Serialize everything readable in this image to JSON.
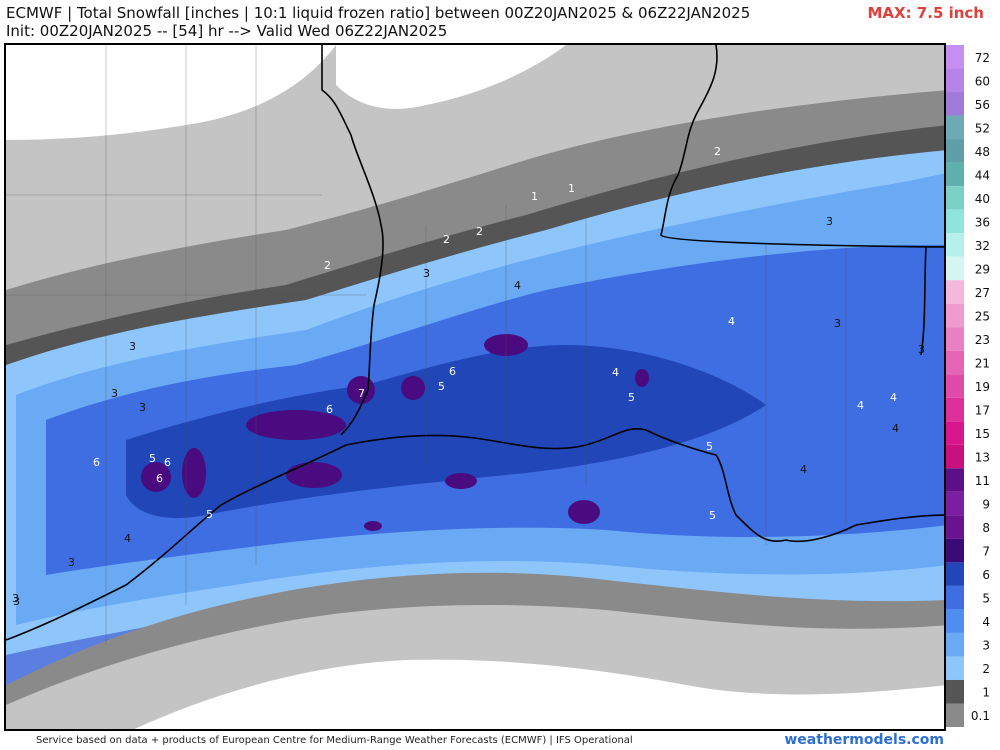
{
  "header": {
    "title_line1": "ECMWF | Total Snowfall [inches | 10:1 liquid frozen ratio] between 00Z20JAN2025 & 06Z22JAN2025",
    "title_line2": "Init: 00Z20JAN2025 -- [54] hr --> Valid Wed 06Z22JAN2025",
    "max_label": "MAX: 7.5 inch"
  },
  "legend": {
    "levels": [
      "72",
      "60",
      "56",
      "52",
      "48",
      "44",
      "40",
      "36",
      "32",
      "29",
      "27",
      "25",
      "23",
      "21",
      "19",
      "17",
      "15",
      "13",
      "11",
      "9",
      "8",
      "7",
      "6",
      "5",
      "4",
      "3",
      "2",
      "1",
      "0.1"
    ],
    "colors": [
      "#c58ef0",
      "#b684e8",
      "#a07ad8",
      "#6fa9b4",
      "#5e9fa8",
      "#5fb1ad",
      "#7bd1c6",
      "#8fe4dc",
      "#b5f0ec",
      "#d3f6f2",
      "#f4b8dd",
      "#ee9bd0",
      "#e880c3",
      "#e465b6",
      "#e04aa8",
      "#dc2f9a",
      "#d8158c",
      "#c8107e",
      "#5c0f86",
      "#7a1fa2",
      "#68138f",
      "#3a0a78",
      "#2146b7",
      "#3f6ee2",
      "#4f8df0",
      "#6aa9f4",
      "#8ec6fb",
      "#555555",
      "#8a8a8a",
      "#c9c9c9"
    ]
  },
  "map": {
    "contour_labels": [
      {
        "text": "2",
        "color": "#ffffff"
      },
      {
        "text": "1",
        "color": "#ffffff"
      },
      {
        "text": "1",
        "color": "#ffffff"
      },
      {
        "text": "2",
        "color": "#ffffff"
      },
      {
        "text": "2",
        "color": "#ffffff"
      },
      {
        "text": "2",
        "color": "#ffffff"
      },
      {
        "text": "3",
        "color": "#111111"
      },
      {
        "text": "3",
        "color": "#111111"
      },
      {
        "text": "4",
        "color": "#111111"
      },
      {
        "text": "4",
        "color": "#ffffff"
      },
      {
        "text": "3",
        "color": "#111111"
      },
      {
        "text": "3",
        "color": "#111111"
      },
      {
        "text": "3",
        "color": "#111111"
      },
      {
        "text": "3",
        "color": "#111111"
      },
      {
        "text": "3",
        "color": "#111111"
      },
      {
        "text": "6",
        "color": "#ffffff"
      },
      {
        "text": "5",
        "color": "#ffffff"
      },
      {
        "text": "7",
        "color": "#ffffff"
      },
      {
        "text": "6",
        "color": "#ffffff"
      },
      {
        "text": "4",
        "color": "#ffffff"
      },
      {
        "text": "5",
        "color": "#ffffff"
      },
      {
        "text": "4",
        "color": "#ffffff"
      },
      {
        "text": "4",
        "color": "#ffffff"
      },
      {
        "text": "4",
        "color": "#111111"
      },
      {
        "text": "5",
        "color": "#ffffff"
      },
      {
        "text": "4",
        "color": "#111111"
      },
      {
        "text": "5",
        "color": "#ffffff"
      },
      {
        "text": "5",
        "color": "#ffffff"
      },
      {
        "text": "6",
        "color": "#ffffff"
      },
      {
        "text": "6",
        "color": "#ffffff"
      },
      {
        "text": "6",
        "color": "#ffffff"
      },
      {
        "text": "5",
        "color": "#ffffff"
      },
      {
        "text": "4",
        "color": "#111111"
      },
      {
        "text": "3",
        "color": "#111111"
      },
      {
        "text": "3",
        "color": "#111111"
      },
      {
        "text": "3",
        "color": "#111111"
      }
    ]
  },
  "footer": {
    "credit": "Service based on data + products of European Centre for Medium-Range Weather Forecasts (ECMWF) | IFS Operational",
    "brand": "weathermodels.com"
  }
}
